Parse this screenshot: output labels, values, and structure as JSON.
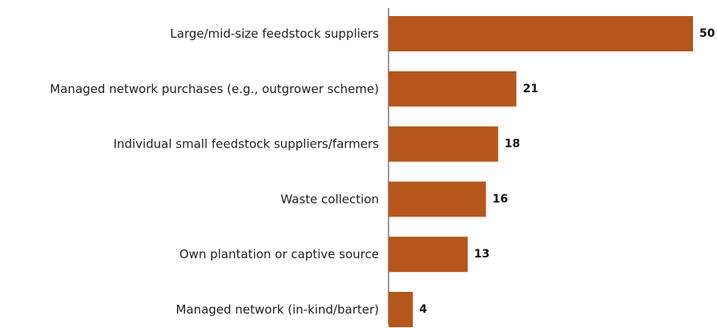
{
  "chart_data": {
    "type": "bar",
    "orientation": "horizontal",
    "categories": [
      "Large/mid-size feedstock suppliers",
      "Managed network purchases (e.g., outgrower scheme)",
      "Individual small feedstock suppliers/farmers",
      "Waste collection",
      "Own plantation or captive source",
      "Managed network (in-kind/barter)"
    ],
    "values": [
      50,
      21,
      18,
      16,
      13,
      4
    ],
    "value_labels": [
      "50",
      "21",
      "18",
      "16",
      "13",
      "4"
    ],
    "title": "",
    "xlabel": "",
    "ylabel": "",
    "xlim": [
      0,
      50
    ],
    "grid": false,
    "legend": "none",
    "colors": {
      "bar": "#B5561C",
      "axis": "#333333",
      "text": "#222222"
    }
  }
}
